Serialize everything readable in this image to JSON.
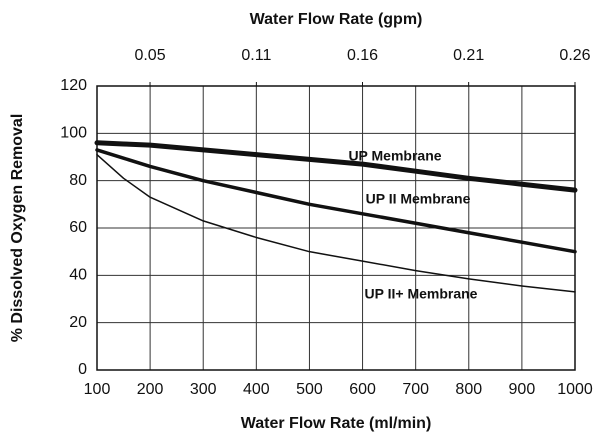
{
  "chart_data": {
    "type": "line",
    "xlabel": "Water Flow Rate (ml/min)",
    "x2label": "Water Flow Rate (gpm)",
    "ylabel": "% Dissolved Oxygen Removal",
    "x": [
      100,
      150,
      200,
      300,
      400,
      500,
      600,
      700,
      800,
      900,
      1000
    ],
    "series": [
      {
        "name": "UP Membrane",
        "color": "#111111",
        "linewidth": 5,
        "values": [
          96,
          95.5,
          95,
          93,
          91,
          89,
          87,
          84,
          81,
          78.5,
          76
        ]
      },
      {
        "name": "UP II Membrane",
        "color": "#111111",
        "linewidth": 3.5,
        "values": [
          93,
          89.5,
          86,
          80,
          75,
          70,
          66,
          62,
          58,
          54,
          50
        ]
      },
      {
        "name": "UP II+ Membrane",
        "color": "#111111",
        "linewidth": 1.5,
        "values": [
          91,
          81,
          73,
          63,
          56,
          50,
          46,
          42,
          38.5,
          35.5,
          33
        ]
      }
    ],
    "xlim": [
      100,
      1000
    ],
    "xticks": [
      100,
      200,
      300,
      400,
      500,
      600,
      700,
      800,
      900,
      1000
    ],
    "x2lim": [
      0.02642,
      0.2642
    ],
    "x2ticks": [
      {
        "value": 0.0528,
        "label": "0.05"
      },
      {
        "value": 0.1057,
        "label": "0.11"
      },
      {
        "value": 0.1585,
        "label": "0.16"
      },
      {
        "value": 0.2113,
        "label": "0.21"
      },
      {
        "value": 0.2642,
        "label": "0.26"
      }
    ],
    "ylim": [
      0,
      120
    ],
    "yticks": [
      0,
      20,
      40,
      60,
      80,
      100,
      120
    ],
    "grid": true
  }
}
